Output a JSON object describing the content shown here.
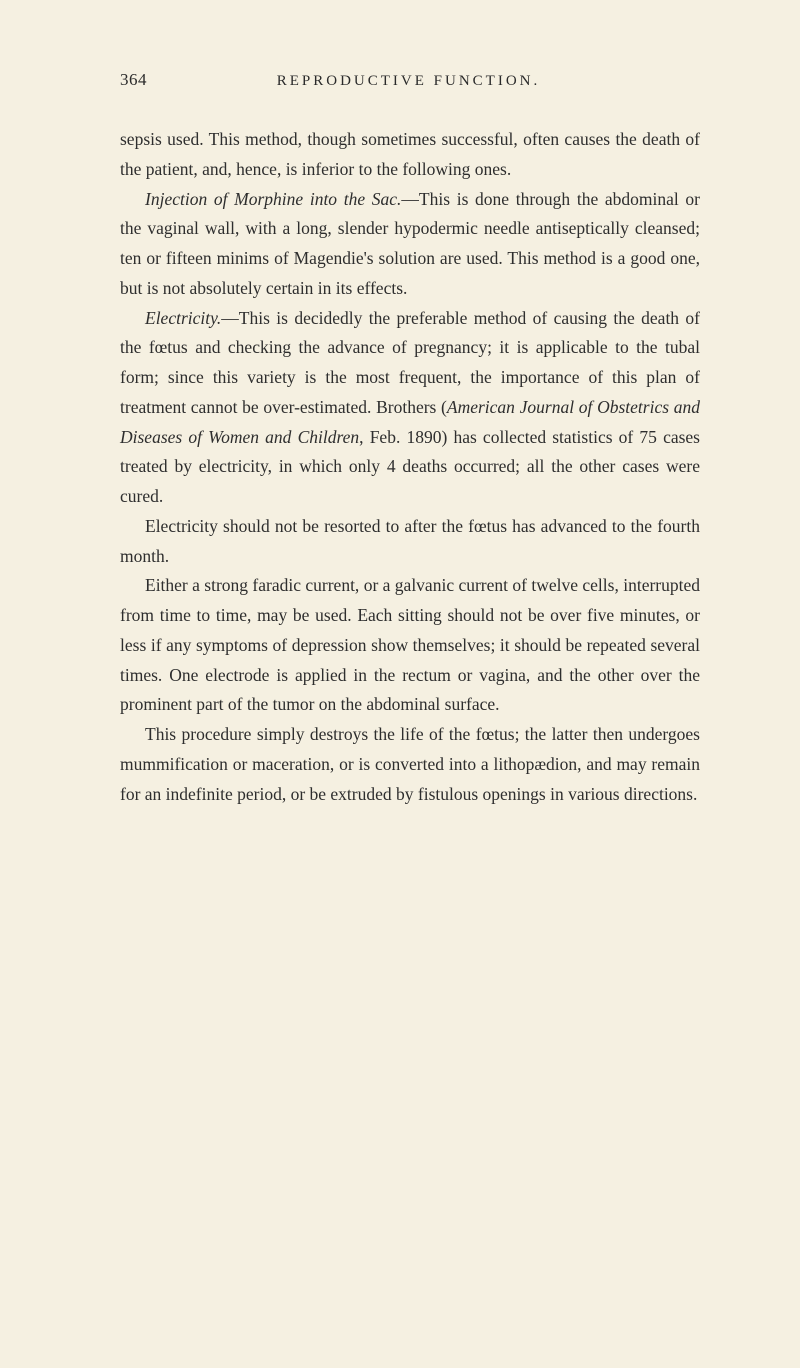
{
  "header": {
    "page_number": "364",
    "running_title": "REPRODUCTIVE FUNCTION."
  },
  "paragraphs": [
    {
      "indent": false,
      "segments": [
        {
          "text": "sepsis used. This method, though sometimes successful, often causes the death of the patient, and, hence, is inferior to the following ones.",
          "italic": false
        }
      ]
    },
    {
      "indent": true,
      "segments": [
        {
          "text": "Injection of Morphine into the Sac.",
          "italic": true
        },
        {
          "text": "—This is done through the abdominal or the vaginal wall, with a long, slender hypodermic needle antiseptically cleansed; ten or fifteen minims of Magendie's solution are used. This method is a good one, but is not absolutely certain in its effects.",
          "italic": false
        }
      ]
    },
    {
      "indent": true,
      "segments": [
        {
          "text": "Electricity.",
          "italic": true
        },
        {
          "text": "—This is decidedly the preferable method of causing the death of the fœtus and checking the advance of pregnancy; it is applicable to the tubal form; since this variety is the most frequent, the importance of this plan of treatment cannot be over-estimated. Brothers (",
          "italic": false
        },
        {
          "text": "American Journal of Obstetrics and Diseases of Women and Children",
          "italic": true
        },
        {
          "text": ", Feb. 1890) has collected statistics of 75 cases treated by electricity, in which only 4 deaths occurred; all the other cases were cured.",
          "italic": false
        }
      ]
    },
    {
      "indent": true,
      "segments": [
        {
          "text": "Electricity should not be resorted to after the fœtus has advanced to the fourth month.",
          "italic": false
        }
      ]
    },
    {
      "indent": true,
      "segments": [
        {
          "text": "Either a strong faradic current, or a galvanic current of twelve cells, interrupted from time to time, may be used. Each sitting should not be over five minutes, or less if any symptoms of depression show themselves; it should be repeated several times. One electrode is applied in the rectum or vagina, and the other over the prominent part of the tumor on the abdominal surface.",
          "italic": false
        }
      ]
    },
    {
      "indent": true,
      "segments": [
        {
          "text": "This procedure simply destroys the life of the fœtus; the latter then undergoes mummification or maceration, or is converted into a lithopædion, and may remain for an indefinite period, or be extruded by fistulous openings in various directions.",
          "italic": false
        }
      ]
    }
  ]
}
